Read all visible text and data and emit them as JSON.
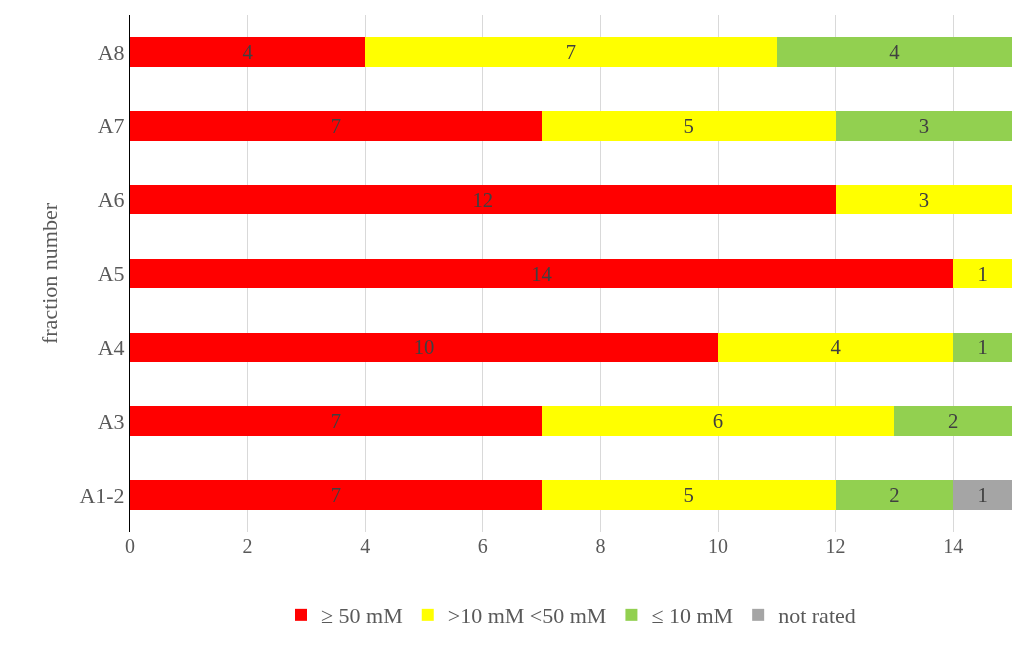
{
  "chart_data": {
    "type": "bar",
    "orientation": "horizontal",
    "stacked": true,
    "ylabel": "fraction number",
    "categories": [
      "A8",
      "A7",
      "A6",
      "A5",
      "A4",
      "A3",
      "A1-2"
    ],
    "series": [
      {
        "name": "≥ 50 mM",
        "color": "#ff0000",
        "values": [
          4,
          7,
          12,
          14,
          10,
          7,
          7
        ]
      },
      {
        "name": ">10 mM <50 mM",
        "color": "#ffff00",
        "values": [
          7,
          5,
          3,
          1,
          4,
          6,
          5
        ]
      },
      {
        "name": "≤ 10 mM",
        "color": "#92d050",
        "values": [
          4,
          3,
          null,
          null,
          1,
          2,
          2
        ]
      },
      {
        "name": "not rated",
        "color": "#a5a5a5",
        "values": [
          null,
          null,
          null,
          null,
          null,
          null,
          1
        ]
      }
    ],
    "xlim": [
      0,
      15
    ],
    "xticks": [
      0,
      2,
      4,
      6,
      8,
      10,
      12,
      14
    ],
    "grid": "x",
    "legend": "bottom",
    "data_labels": true
  }
}
